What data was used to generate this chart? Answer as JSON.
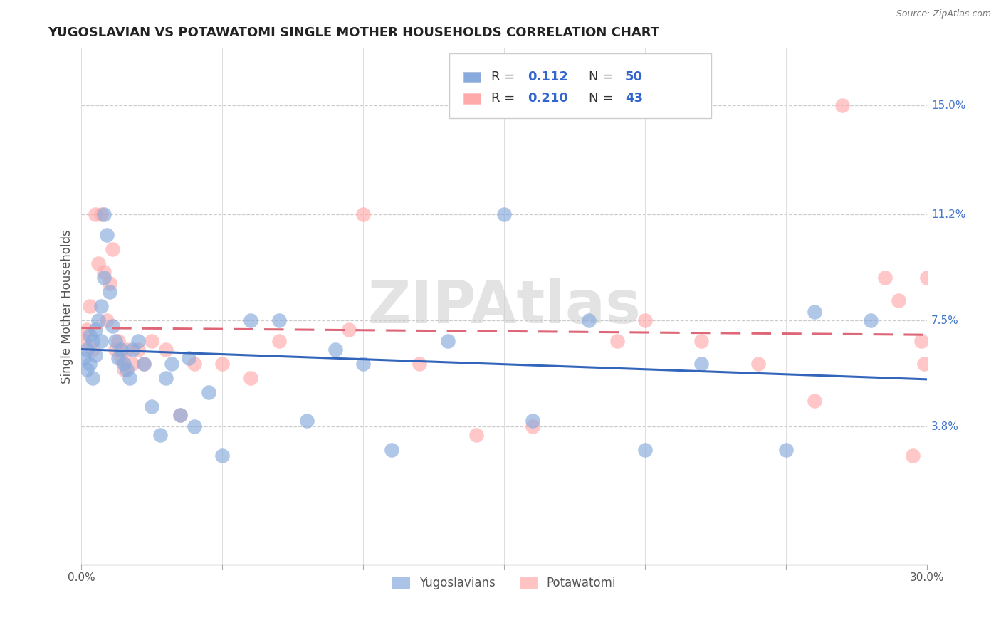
{
  "title": "YUGOSLAVIAN VS POTAWATOMI SINGLE MOTHER HOUSEHOLDS CORRELATION CHART",
  "source": "Source: ZipAtlas.com",
  "ylabel": "Single Mother Households",
  "xlim": [
    0.0,
    0.3
  ],
  "ylim": [
    -0.01,
    0.17
  ],
  "yticks": [
    0.038,
    0.075,
    0.112,
    0.15
  ],
  "ytick_labels": [
    "3.8%",
    "7.5%",
    "11.2%",
    "15.0%"
  ],
  "xtick_positions": [
    0.0,
    0.05,
    0.1,
    0.15,
    0.2,
    0.25,
    0.3
  ],
  "xtick_labels": [
    "0.0%",
    "",
    "",
    "",
    "",
    "",
    "30.0%"
  ],
  "blue_color": "#88AADD",
  "pink_color": "#FFAAAA",
  "blue_line_color": "#3366BB",
  "pink_line_color": "#DD6677",
  "blue_R": 0.112,
  "blue_N": 50,
  "pink_R": 0.21,
  "pink_N": 43,
  "watermark": "ZIPAtlas",
  "legend_labels": [
    "Yugoslavians",
    "Potawatomi"
  ],
  "blue_scatter_x": [
    0.001,
    0.002,
    0.002,
    0.003,
    0.003,
    0.004,
    0.004,
    0.005,
    0.005,
    0.006,
    0.007,
    0.007,
    0.008,
    0.008,
    0.009,
    0.01,
    0.011,
    0.012,
    0.013,
    0.014,
    0.015,
    0.016,
    0.017,
    0.018,
    0.02,
    0.022,
    0.025,
    0.028,
    0.03,
    0.032,
    0.035,
    0.038,
    0.04,
    0.045,
    0.05,
    0.06,
    0.07,
    0.08,
    0.09,
    0.1,
    0.11,
    0.13,
    0.15,
    0.16,
    0.18,
    0.2,
    0.22,
    0.25,
    0.26,
    0.28
  ],
  "blue_scatter_y": [
    0.062,
    0.058,
    0.065,
    0.07,
    0.06,
    0.068,
    0.055,
    0.072,
    0.063,
    0.075,
    0.08,
    0.068,
    0.112,
    0.09,
    0.105,
    0.085,
    0.073,
    0.068,
    0.062,
    0.065,
    0.06,
    0.058,
    0.055,
    0.065,
    0.068,
    0.06,
    0.045,
    0.035,
    0.055,
    0.06,
    0.042,
    0.062,
    0.038,
    0.05,
    0.028,
    0.075,
    0.075,
    0.04,
    0.065,
    0.06,
    0.03,
    0.068,
    0.112,
    0.04,
    0.075,
    0.03,
    0.06,
    0.03,
    0.078,
    0.075
  ],
  "pink_scatter_x": [
    0.001,
    0.002,
    0.003,
    0.004,
    0.005,
    0.006,
    0.007,
    0.008,
    0.009,
    0.01,
    0.011,
    0.012,
    0.013,
    0.014,
    0.015,
    0.016,
    0.018,
    0.02,
    0.022,
    0.025,
    0.03,
    0.035,
    0.04,
    0.05,
    0.06,
    0.07,
    0.095,
    0.1,
    0.12,
    0.14,
    0.16,
    0.19,
    0.2,
    0.22,
    0.24,
    0.26,
    0.27,
    0.285,
    0.29,
    0.295,
    0.298,
    0.299,
    0.3
  ],
  "pink_scatter_y": [
    0.068,
    0.072,
    0.08,
    0.065,
    0.112,
    0.095,
    0.112,
    0.092,
    0.075,
    0.088,
    0.1,
    0.065,
    0.068,
    0.062,
    0.058,
    0.065,
    0.06,
    0.065,
    0.06,
    0.068,
    0.065,
    0.042,
    0.06,
    0.06,
    0.055,
    0.068,
    0.072,
    0.112,
    0.06,
    0.035,
    0.038,
    0.068,
    0.075,
    0.068,
    0.06,
    0.047,
    0.15,
    0.09,
    0.082,
    0.028,
    0.068,
    0.06,
    0.09
  ]
}
